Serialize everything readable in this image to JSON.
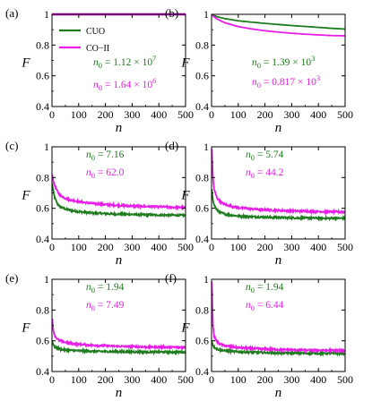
{
  "colors": {
    "CUO": "#1e7b1e",
    "CO-II": "#e81ee8"
  },
  "chart_data": [
    {
      "type": "line",
      "panel_label": "(a)",
      "xlabel": "n",
      "ylabel": "F",
      "xlim": [
        0,
        500
      ],
      "ylim": [
        0.4,
        1.0
      ],
      "xticks": [
        "0",
        "100",
        "200",
        "300",
        "400",
        "500"
      ],
      "yticks": [
        "0.4",
        "0.6",
        "0.8",
        "1"
      ],
      "legend": {
        "position": "top-left",
        "entries": [
          "CUO",
          "CO−II"
        ]
      },
      "series": [
        {
          "name": "CUO",
          "x": [
            0,
            100,
            200,
            300,
            400,
            500
          ],
          "y": [
            1.0,
            1.0,
            1.0,
            1.0,
            1.0,
            1.0
          ]
        },
        {
          "name": "CO−II",
          "x": [
            0,
            100,
            200,
            300,
            400,
            500
          ],
          "y": [
            1.0,
            1.0,
            1.0,
            1.0,
            1.0,
            1.0
          ]
        }
      ],
      "annotations": [
        {
          "series": "CUO",
          "prefix": "n",
          "sub": "0",
          "text": " = 1.12 × 10",
          "sup": "7"
        },
        {
          "series": "CO−II",
          "prefix": "n",
          "sub": "0",
          "text": " = 1.64 × 10",
          "sup": "6"
        }
      ]
    },
    {
      "type": "line",
      "panel_label": "(b)",
      "xlabel": "n",
      "ylabel": "F",
      "xlim": [
        0,
        500
      ],
      "ylim": [
        0.4,
        1.0
      ],
      "xticks": [
        "0",
        "100",
        "200",
        "300",
        "400",
        "500"
      ],
      "yticks": [
        "0.4",
        "0.6",
        "0.8",
        "1"
      ],
      "series": [
        {
          "name": "CUO",
          "x": [
            0,
            5,
            20,
            50,
            100,
            150,
            200,
            250,
            300,
            350,
            400,
            450,
            500
          ],
          "y": [
            1.0,
            0.995,
            0.985,
            0.972,
            0.958,
            0.949,
            0.941,
            0.934,
            0.927,
            0.921,
            0.915,
            0.909,
            0.904
          ]
        },
        {
          "name": "CO−II",
          "x": [
            0,
            5,
            20,
            50,
            100,
            150,
            200,
            250,
            300,
            350,
            400,
            450,
            500
          ],
          "y": [
            1.0,
            0.99,
            0.97,
            0.945,
            0.92,
            0.905,
            0.893,
            0.884,
            0.877,
            0.871,
            0.866,
            0.862,
            0.86
          ]
        }
      ],
      "annotations": [
        {
          "series": "CUO",
          "prefix": "n",
          "sub": "0",
          "text": " = 1.39 × 10",
          "sup": "3"
        },
        {
          "series": "CO−II",
          "prefix": "n",
          "sub": "0",
          "text": " = 0.817 × 10",
          "sup": "3"
        }
      ]
    },
    {
      "type": "line",
      "panel_label": "(c)",
      "xlabel": "n",
      "ylabel": "F",
      "xlim": [
        0,
        500
      ],
      "ylim": [
        0.4,
        1.0
      ],
      "xticks": [
        "0",
        "100",
        "200",
        "300",
        "400",
        "500"
      ],
      "yticks": [
        "0.4",
        "0.6",
        "0.8",
        "1"
      ],
      "series": [
        {
          "name": "CUO",
          "x": [
            1,
            5,
            10,
            20,
            30,
            50,
            75,
            100,
            150,
            200,
            250,
            300,
            350,
            400,
            450,
            500
          ],
          "y": [
            0.76,
            0.71,
            0.67,
            0.63,
            0.61,
            0.595,
            0.585,
            0.578,
            0.57,
            0.565,
            0.562,
            0.56,
            0.558,
            0.556,
            0.555,
            0.554
          ]
        },
        {
          "name": "CO−II",
          "x": [
            1,
            5,
            10,
            20,
            30,
            50,
            75,
            100,
            150,
            200,
            250,
            300,
            350,
            400,
            450,
            500
          ],
          "y": [
            0.82,
            0.78,
            0.75,
            0.71,
            0.685,
            0.665,
            0.652,
            0.643,
            0.632,
            0.624,
            0.619,
            0.615,
            0.612,
            0.61,
            0.607,
            0.605
          ]
        }
      ],
      "annotations": [
        {
          "series": "CUO",
          "prefix": "n",
          "sub": "0",
          "text": " = 7.16"
        },
        {
          "series": "CO−II",
          "prefix": "n",
          "sub": "0",
          "text": " = 62.0"
        }
      ]
    },
    {
      "type": "line",
      "panel_label": "(d)",
      "xlabel": "n",
      "ylabel": "F",
      "xlim": [
        0,
        500
      ],
      "ylim": [
        0.4,
        1.0
      ],
      "xticks": [
        "0",
        "100",
        "200",
        "300",
        "400",
        "500"
      ],
      "yticks": [
        "0.4",
        "0.6",
        "0.8",
        "1"
      ],
      "series": [
        {
          "name": "CUO",
          "x": [
            1,
            5,
            10,
            20,
            30,
            50,
            75,
            100,
            150,
            200,
            250,
            300,
            350,
            400,
            450,
            500
          ],
          "y": [
            0.72,
            0.66,
            0.62,
            0.59,
            0.575,
            0.562,
            0.555,
            0.55,
            0.545,
            0.542,
            0.54,
            0.538,
            0.537,
            0.536,
            0.535,
            0.535
          ]
        },
        {
          "name": "CO−II",
          "x": [
            1,
            5,
            10,
            20,
            30,
            50,
            75,
            100,
            150,
            200,
            250,
            300,
            350,
            400,
            450,
            500
          ],
          "y": [
            0.99,
            0.8,
            0.72,
            0.67,
            0.645,
            0.625,
            0.612,
            0.605,
            0.596,
            0.59,
            0.586,
            0.583,
            0.581,
            0.579,
            0.577,
            0.576
          ]
        }
      ],
      "annotations": [
        {
          "series": "CUO",
          "prefix": "n",
          "sub": "0",
          "text": " = 5.74"
        },
        {
          "series": "CO−II",
          "prefix": "n",
          "sub": "0",
          "text": " = 44.2"
        }
      ]
    },
    {
      "type": "line",
      "panel_label": "(e)",
      "xlabel": "n",
      "ylabel": "F",
      "xlim": [
        0,
        500
      ],
      "ylim": [
        0.4,
        1.0
      ],
      "xticks": [
        "0",
        "100",
        "200",
        "300",
        "400",
        "500"
      ],
      "yticks": [
        "0.4",
        "0.6",
        "0.8",
        "1"
      ],
      "series": [
        {
          "name": "CUO",
          "x": [
            1,
            5,
            10,
            20,
            30,
            50,
            75,
            100,
            150,
            200,
            250,
            300,
            350,
            400,
            450,
            500
          ],
          "y": [
            0.6,
            0.575,
            0.56,
            0.55,
            0.545,
            0.54,
            0.537,
            0.535,
            0.532,
            0.53,
            0.529,
            0.528,
            0.527,
            0.527,
            0.526,
            0.526
          ]
        },
        {
          "name": "CO−II",
          "x": [
            1,
            5,
            10,
            20,
            30,
            50,
            75,
            100,
            150,
            200,
            250,
            300,
            350,
            400,
            450,
            500
          ],
          "y": [
            0.74,
            0.67,
            0.635,
            0.61,
            0.6,
            0.59,
            0.582,
            0.577,
            0.571,
            0.567,
            0.564,
            0.562,
            0.56,
            0.559,
            0.558,
            0.557
          ]
        }
      ],
      "annotations": [
        {
          "series": "CUO",
          "prefix": "n",
          "sub": "0",
          "text": " = 1.94"
        },
        {
          "series": "CO−II",
          "prefix": "n",
          "sub": "0",
          "text": " = 7.49"
        }
      ]
    },
    {
      "type": "line",
      "panel_label": "(f)",
      "xlabel": "n",
      "ylabel": "F",
      "xlim": [
        0,
        500
      ],
      "ylim": [
        0.4,
        1.0
      ],
      "xticks": [
        "0",
        "100",
        "200",
        "300",
        "400",
        "500"
      ],
      "yticks": [
        "0.4",
        "0.6",
        "0.8",
        "1"
      ],
      "series": [
        {
          "name": "CUO",
          "x": [
            1,
            5,
            10,
            20,
            30,
            50,
            75,
            100,
            150,
            200,
            250,
            300,
            350,
            400,
            450,
            500
          ],
          "y": [
            0.6,
            0.573,
            0.558,
            0.547,
            0.541,
            0.535,
            0.531,
            0.528,
            0.525,
            0.523,
            0.521,
            0.52,
            0.519,
            0.518,
            0.518,
            0.517
          ]
        },
        {
          "name": "CO−II",
          "x": [
            1,
            5,
            10,
            20,
            30,
            50,
            75,
            100,
            150,
            200,
            250,
            300,
            350,
            400,
            450,
            500
          ],
          "y": [
            0.99,
            0.7,
            0.63,
            0.595,
            0.58,
            0.568,
            0.561,
            0.556,
            0.55,
            0.546,
            0.543,
            0.541,
            0.539,
            0.538,
            0.537,
            0.536
          ]
        }
      ],
      "annotations": [
        {
          "series": "CUO",
          "prefix": "n",
          "sub": "0",
          "text": " = 1.94"
        },
        {
          "series": "CO−II",
          "prefix": "n",
          "sub": "0",
          "text": " = 6.44"
        }
      ]
    }
  ]
}
